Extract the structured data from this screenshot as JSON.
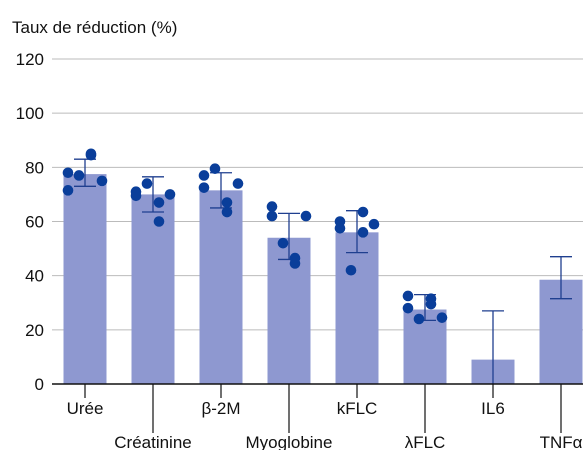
{
  "chart_data": {
    "type": "bar",
    "title": "Taux de réduction (%)",
    "xlabel": "",
    "ylabel": "",
    "ylim": [
      0,
      120
    ],
    "y_ticks": [
      0,
      20,
      40,
      60,
      80,
      100,
      120
    ],
    "grid": true,
    "legend": "none",
    "colors": {
      "bar": "#8e98d0",
      "point": "#0a3e9a",
      "error": "#1f3f8f",
      "grid": "#bbbbbb",
      "axis": "#111111"
    },
    "categories": [
      "Urée",
      "Créatinine",
      "β-2M",
      "Myoglobine",
      "kFLC",
      "λFLC",
      "IL6",
      "TNFα"
    ],
    "values": [
      77.5,
      70,
      71.5,
      54,
      56,
      27.5,
      9,
      38.5
    ],
    "error_low": [
      73,
      63.5,
      65,
      46,
      48.5,
      23.5,
      -9,
      31.5
    ],
    "error_high": [
      83,
      76.5,
      78,
      63,
      64,
      33,
      27,
      47
    ],
    "points": [
      [
        78,
        71.5,
        77,
        84.5,
        85,
        75
      ],
      [
        71,
        69.5,
        74,
        60,
        67,
        70
      ],
      [
        77,
        72.5,
        79.5,
        63.5,
        67,
        74
      ],
      [
        62,
        65.5,
        52,
        44.5,
        46.5,
        62
      ],
      [
        60,
        57.5,
        42,
        63.5,
        56,
        59
      ],
      [
        28,
        32.5,
        24,
        31.5,
        29.5,
        24.5
      ],
      [],
      []
    ]
  }
}
